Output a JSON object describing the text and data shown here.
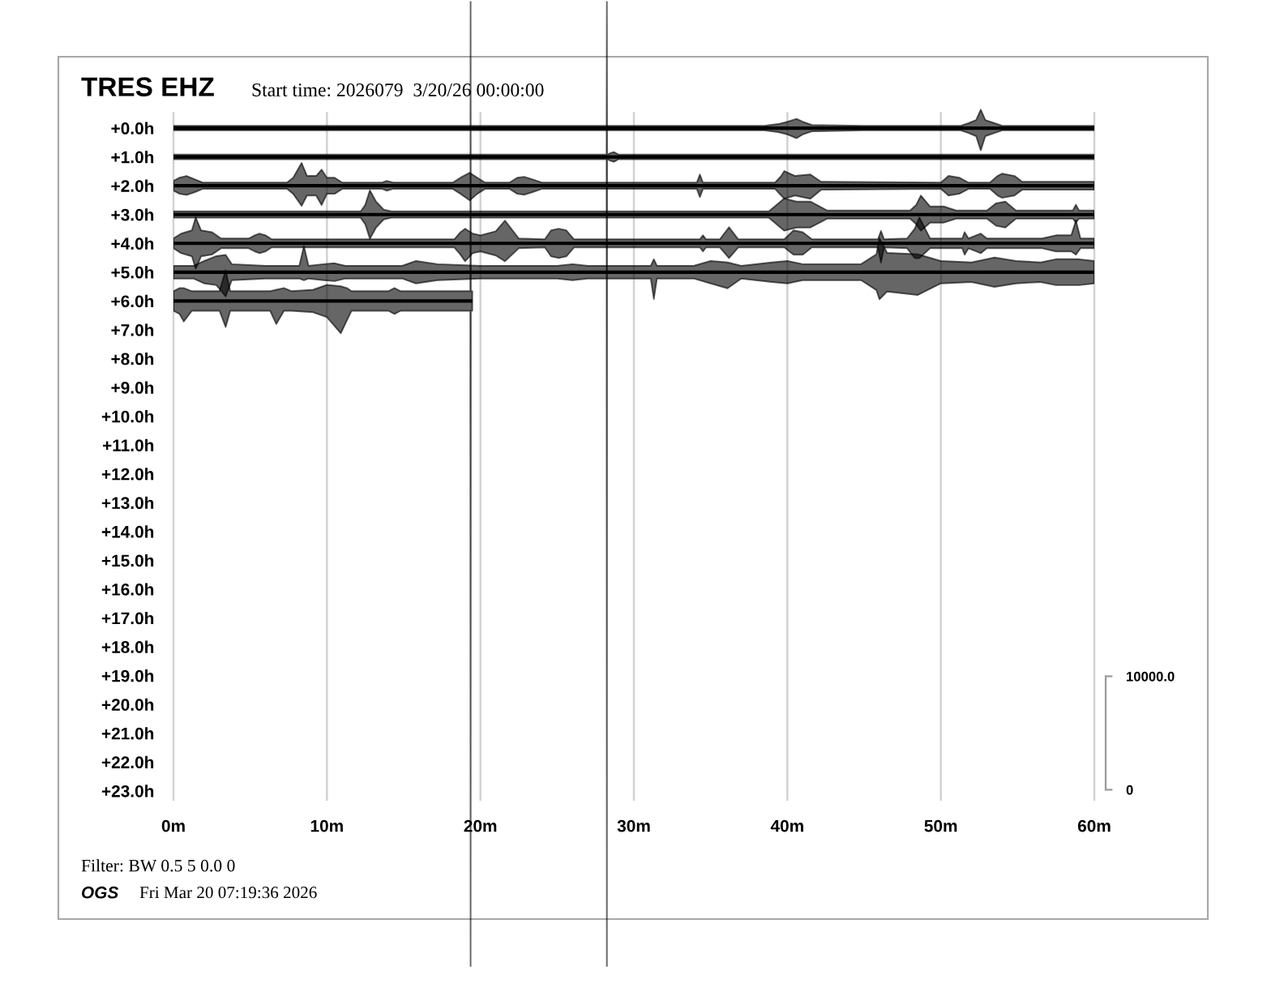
{
  "chart_data": {
    "type": "line",
    "title": "TRES EHZ",
    "subtitle": "Start time: 2026079  3/20/26 00:00:00",
    "annotations": [
      "Filter: BW 0.5 5 0.0 0",
      "OGS",
      "Fri Mar 20 07:19:36 2026"
    ],
    "xlim": [
      0,
      60
    ],
    "xticks": [
      {
        "value": 0,
        "label": "0m"
      },
      {
        "value": 10,
        "label": "10m"
      },
      {
        "value": 20,
        "label": "20m"
      },
      {
        "value": 30,
        "label": "30m"
      },
      {
        "value": 40,
        "label": "40m"
      },
      {
        "value": 50,
        "label": "50m"
      },
      {
        "value": 60,
        "label": "60m"
      }
    ],
    "ylim": [
      29.1,
      -4.4
    ],
    "yticks": [
      {
        "value": 0,
        "label": "+0.0h"
      },
      {
        "value": 1,
        "label": "+1.0h"
      },
      {
        "value": 2,
        "label": "+2.0h"
      },
      {
        "value": 3,
        "label": "+3.0h"
      },
      {
        "value": 4,
        "label": "+4.0h"
      },
      {
        "value": 5,
        "label": "+5.0h"
      },
      {
        "value": 6,
        "label": "+6.0h"
      },
      {
        "value": 7,
        "label": "+7.0h"
      },
      {
        "value": 8,
        "label": "+8.0h"
      },
      {
        "value": 9,
        "label": "+9.0h"
      },
      {
        "value": 10,
        "label": "+10.0h"
      },
      {
        "value": 11,
        "label": "+11.0h"
      },
      {
        "value": 12,
        "label": "+12.0h"
      },
      {
        "value": 13,
        "label": "+13.0h"
      },
      {
        "value": 14,
        "label": "+14.0h"
      },
      {
        "value": 15,
        "label": "+15.0h"
      },
      {
        "value": 16,
        "label": "+16.0h"
      },
      {
        "value": 17,
        "label": "+17.0h"
      },
      {
        "value": 18,
        "label": "+18.0h"
      },
      {
        "value": 19,
        "label": "+19.0h"
      },
      {
        "value": 20,
        "label": "+20.0h"
      },
      {
        "value": 21,
        "label": "+21.0h"
      },
      {
        "value": 22,
        "label": "+22.0h"
      },
      {
        "value": 23,
        "label": "+23.0h"
      }
    ],
    "y2lim": [
      -15600,
      69500
    ],
    "y2ticks": [
      0,
      {
        "value": 10000,
        "label": "10000.0"
      }
    ],
    "grid": "x",
    "series": [
      {
        "color": "#000000",
        "x": [
          0,
          10,
          20,
          30,
          38.5,
          39.4,
          40.0,
          40.6,
          41.0,
          41.6,
          45,
          51.3,
          51.8,
          52.3,
          52.6,
          52.9,
          53.5,
          54,
          60
        ],
        "values": [
          0,
          0,
          0,
          0,
          0,
          0,
          0,
          0,
          0,
          0,
          0,
          0,
          0,
          0,
          0,
          0,
          0,
          0,
          0
        ],
        "lower": [
          -0.08,
          -0.08,
          -0.08,
          -0.08,
          -0.08,
          -0.14,
          -0.22,
          -0.32,
          -0.22,
          -0.11,
          -0.08,
          -0.08,
          -0.17,
          -0.28,
          -0.64,
          -0.28,
          -0.17,
          -0.08,
          -0.08
        ],
        "upper": [
          0.08,
          0.08,
          0.08,
          0.08,
          0.08,
          0.14,
          0.22,
          0.35,
          0.22,
          0.11,
          0.08,
          0.08,
          0.17,
          0.28,
          0.77,
          0.28,
          0.17,
          0.08,
          0.08
        ]
      },
      {
        "color": "#000000",
        "x": [
          0,
          10,
          20,
          28.0,
          28.22,
          28.24,
          28.26,
          28.5,
          28.7,
          29.0,
          40,
          50,
          60
        ],
        "values": [
          1,
          1,
          1,
          1,
          1,
          1,
          1,
          1,
          1,
          1,
          1,
          1,
          1
        ],
        "lower": [
          0.92,
          0.92,
          0.92,
          0.92,
          0.92,
          -4.4,
          0.92,
          0.86,
          0.83,
          0.92,
          0.92,
          0.92,
          0.92
        ],
        "upper": [
          1.08,
          1.08,
          1.08,
          1.08,
          1.08,
          29.1,
          1.08,
          1.14,
          1.17,
          1.08,
          1.08,
          1.08,
          1.08
        ]
      },
      {
        "color": "#000000",
        "x": [
          0,
          0.4,
          0.85,
          1.4,
          1.9,
          5,
          7.4,
          7.8,
          8.35,
          8.7,
          9.3,
          9.65,
          10.0,
          10.5,
          11.0,
          13.6,
          13.9,
          14.3,
          18.2,
          18.7,
          19.3,
          19.8,
          20.3,
          21.9,
          22.4,
          22.85,
          23.4,
          24.0,
          34.1,
          34.3,
          34.5,
          39.2,
          39.6,
          39.8,
          40.5,
          41.5,
          42.2,
          50.0,
          50.5,
          51.2,
          51.8,
          53.2,
          53.7,
          54.0,
          54.8,
          55.3,
          60
        ],
        "values": [
          2,
          2,
          2,
          2,
          2,
          2,
          2,
          2,
          2,
          2,
          2,
          2,
          2,
          2,
          2,
          2,
          2,
          2,
          2,
          2,
          2,
          2,
          2,
          2,
          2,
          2,
          2,
          2,
          2,
          2,
          2,
          2,
          2,
          2,
          2,
          2,
          2,
          2,
          2,
          2,
          2,
          2,
          2,
          2,
          2,
          2,
          2
        ],
        "lower": [
          1.83,
          1.72,
          1.66,
          1.78,
          1.89,
          1.89,
          1.89,
          1.72,
          1.21,
          1.66,
          1.66,
          1.44,
          1.72,
          1.72,
          1.89,
          1.89,
          1.83,
          1.89,
          1.89,
          1.72,
          1.55,
          1.72,
          1.89,
          1.89,
          1.72,
          1.69,
          1.78,
          1.89,
          1.89,
          1.61,
          1.89,
          1.89,
          1.66,
          1.49,
          1.66,
          1.61,
          1.86,
          1.89,
          1.66,
          1.72,
          1.89,
          1.89,
          1.66,
          1.58,
          1.66,
          1.86,
          1.86
        ],
        "upper": [
          2.17,
          2.28,
          2.32,
          2.22,
          2.11,
          2.11,
          2.11,
          2.28,
          2.7,
          2.34,
          2.34,
          2.67,
          2.28,
          2.28,
          2.11,
          2.11,
          2.17,
          2.11,
          2.11,
          2.28,
          2.51,
          2.28,
          2.11,
          2.11,
          2.28,
          2.31,
          2.22,
          2.11,
          2.11,
          2.39,
          2.11,
          2.11,
          2.34,
          2.45,
          2.34,
          2.45,
          2.14,
          2.11,
          2.34,
          2.28,
          2.11,
          2.11,
          2.34,
          2.42,
          2.34,
          2.14,
          2.14
        ]
      },
      {
        "color": "#000000",
        "x": [
          0,
          12.2,
          12.5,
          12.8,
          13.2,
          13.7,
          14.2,
          38.8,
          39.3,
          39.8,
          40.6,
          41.5,
          42.6,
          48.0,
          48.4,
          48.7,
          49.3,
          50.2,
          51.0,
          53.0,
          53.6,
          54.2,
          54.9,
          58.6,
          58.8,
          59.0,
          60
        ],
        "values": [
          3,
          3,
          3,
          3,
          3,
          3,
          3,
          3,
          3,
          3,
          3,
          3,
          3,
          3,
          3,
          3,
          3,
          3,
          3,
          3,
          3,
          3,
          3,
          3,
          3,
          3,
          3
        ],
        "lower": [
          2.89,
          2.89,
          2.66,
          2.16,
          2.55,
          2.83,
          2.89,
          2.89,
          2.66,
          2.44,
          2.55,
          2.55,
          2.86,
          2.86,
          2.66,
          2.34,
          2.72,
          2.72,
          2.86,
          2.86,
          2.61,
          2.55,
          2.86,
          2.86,
          2.66,
          2.86,
          2.86
        ],
        "upper": [
          3.11,
          3.11,
          3.34,
          3.84,
          3.45,
          3.17,
          3.11,
          3.11,
          3.34,
          3.56,
          3.45,
          3.45,
          3.14,
          3.14,
          3.34,
          3.56,
          3.28,
          3.28,
          3.14,
          3.14,
          3.39,
          3.45,
          3.14,
          3.14,
          3.28,
          3.14,
          3.14
        ]
      },
      {
        "color": "#000000",
        "x": [
          0,
          0.5,
          1.2,
          1.45,
          1.8,
          2.5,
          3.1,
          4.9,
          5.3,
          5.6,
          6.0,
          6.4,
          18.3,
          18.7,
          19.0,
          19.5,
          20.0,
          21.0,
          21.6,
          22.5,
          24.2,
          24.6,
          25.1,
          25.6,
          26.1,
          34.3,
          34.5,
          34.7,
          35.6,
          36.2,
          36.8,
          39.8,
          40.4,
          41.0,
          41.6,
          45.9,
          46.1,
          46.3,
          47.8,
          48.3,
          48.6,
          49.3,
          51.4,
          51.55,
          51.8,
          52.6,
          53.0,
          56.6,
          57.5,
          58.5,
          58.8,
          59.1,
          60
        ],
        "values": [
          4,
          4,
          4,
          4,
          4,
          4,
          4,
          4,
          4,
          4,
          4,
          4,
          4,
          4,
          4,
          4,
          4,
          4,
          4,
          4,
          4,
          4,
          4,
          4,
          4,
          4,
          4,
          4,
          4,
          4,
          4,
          4,
          4,
          4,
          4,
          4,
          4,
          4,
          4,
          4,
          4,
          4,
          4,
          4,
          4,
          4,
          4,
          4,
          4,
          4,
          4,
          4,
          4
        ],
        "lower": [
          3.83,
          3.66,
          3.55,
          3.1,
          3.55,
          3.61,
          3.83,
          3.83,
          3.72,
          3.66,
          3.72,
          3.86,
          3.86,
          3.61,
          3.49,
          3.66,
          3.72,
          3.58,
          3.21,
          3.83,
          3.86,
          3.55,
          3.49,
          3.55,
          3.86,
          3.86,
          3.72,
          3.86,
          3.86,
          3.44,
          3.86,
          3.86,
          3.55,
          3.61,
          3.86,
          3.86,
          3.57,
          3.86,
          3.83,
          3.49,
          3.1,
          3.83,
          3.83,
          3.61,
          3.83,
          3.66,
          3.83,
          3.83,
          3.72,
          3.72,
          3.21,
          3.83,
          3.83
        ],
        "upper": [
          4.17,
          4.34,
          4.45,
          4.88,
          4.45,
          4.39,
          4.17,
          4.17,
          4.28,
          4.34,
          4.28,
          4.14,
          4.14,
          4.39,
          4.62,
          4.34,
          4.28,
          4.42,
          4.62,
          4.17,
          4.14,
          4.45,
          4.51,
          4.45,
          4.14,
          4.14,
          4.28,
          4.14,
          4.14,
          4.51,
          4.14,
          4.14,
          4.39,
          4.39,
          4.14,
          4.14,
          4.67,
          4.14,
          4.17,
          4.51,
          4.51,
          4.17,
          4.17,
          4.39,
          4.17,
          4.34,
          4.17,
          4.17,
          4.28,
          4.28,
          4.39,
          4.17,
          4.17
        ]
      },
      {
        "color": "#000000",
        "x": [
          0,
          1.3,
          2.0,
          2.8,
          3.4,
          3.8,
          6,
          8.2,
          8.5,
          8.8,
          9.8,
          10.5,
          11.2,
          14.9,
          15.8,
          17.2,
          20,
          25.0,
          26.0,
          27.0,
          31.1,
          31.3,
          31.5,
          33.9,
          35.0,
          36.1,
          37.0,
          39.0,
          40.0,
          41.0,
          42.5,
          44.8,
          45.8,
          46.0,
          46.5,
          48.5,
          50.0,
          52.0,
          53.5,
          54.9,
          56.5,
          57.5,
          59.0,
          60
        ],
        "values": [
          5,
          5,
          5,
          5,
          5,
          5,
          5,
          5,
          5,
          5,
          5,
          5,
          5,
          5,
          5,
          5,
          5,
          5,
          5,
          5,
          5,
          5,
          5,
          5,
          5,
          5,
          5,
          5,
          5,
          5,
          5,
          5,
          5,
          5,
          5,
          5,
          5,
          5,
          5,
          5,
          5,
          5,
          5,
          5
        ],
        "lower": [
          4.78,
          4.78,
          4.61,
          4.44,
          4.4,
          4.72,
          4.78,
          4.78,
          4.1,
          4.78,
          4.72,
          4.69,
          4.78,
          4.78,
          4.61,
          4.72,
          4.78,
          4.78,
          4.72,
          4.78,
          4.78,
          4.55,
          4.78,
          4.78,
          4.61,
          4.66,
          4.78,
          4.66,
          4.61,
          4.72,
          4.72,
          4.72,
          4.38,
          3.82,
          4.33,
          4.38,
          4.61,
          4.66,
          4.49,
          4.61,
          4.66,
          4.55,
          4.55,
          4.61
        ],
        "upper": [
          5.22,
          5.22,
          5.39,
          5.45,
          5.84,
          5.28,
          5.22,
          5.22,
          5.28,
          5.22,
          5.28,
          5.31,
          5.22,
          5.22,
          5.39,
          5.28,
          5.22,
          5.22,
          5.28,
          5.22,
          5.22,
          5.93,
          5.22,
          5.22,
          5.39,
          5.56,
          5.22,
          5.34,
          5.39,
          5.28,
          5.28,
          5.28,
          5.62,
          5.94,
          5.67,
          5.79,
          5.39,
          5.34,
          5.51,
          5.39,
          5.34,
          5.45,
          5.45,
          5.39
        ]
      },
      {
        "color": "#000000",
        "x": [
          0,
          0.4,
          0.67,
          1.2,
          3.0,
          3.4,
          3.7,
          6.3,
          6.7,
          7.2,
          7.7,
          9.1,
          10.0,
          10.9,
          11.3,
          11.6,
          14.0,
          14.4,
          14.8,
          19.34,
          19.36,
          19.38,
          19.47
        ],
        "values": [
          6,
          6,
          6,
          6,
          6,
          6,
          6,
          6,
          6,
          6,
          6,
          6,
          6,
          6,
          6,
          6,
          6,
          6,
          6,
          6,
          6,
          6,
          6
        ],
        "lower": [
          5.66,
          5.55,
          5.55,
          5.66,
          5.66,
          4.93,
          5.66,
          5.66,
          5.61,
          5.55,
          5.66,
          5.61,
          5.44,
          5.49,
          5.55,
          5.66,
          5.66,
          5.55,
          5.66,
          5.66,
          -4.4,
          5.66,
          5.66
        ],
        "upper": [
          6.34,
          6.45,
          6.71,
          6.34,
          6.34,
          6.9,
          6.34,
          6.34,
          6.8,
          6.34,
          6.34,
          6.39,
          6.56,
          7.12,
          6.67,
          6.34,
          6.34,
          6.45,
          6.34,
          6.34,
          29.1,
          6.34,
          6.34
        ]
      }
    ]
  }
}
